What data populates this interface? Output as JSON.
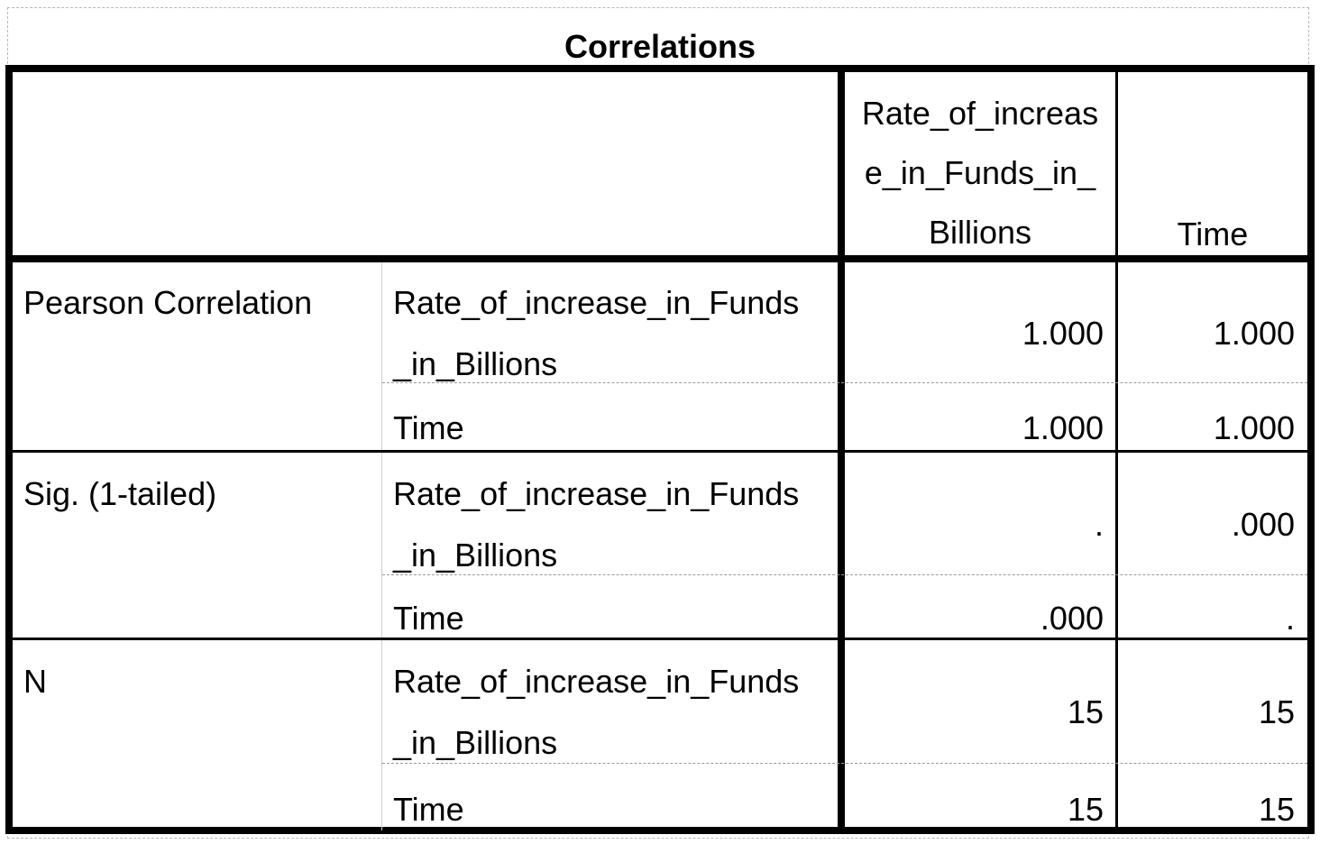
{
  "table": {
    "title": "Correlations",
    "columns": [
      "Rate_of_increase_in_Funds_in_Billions",
      "Time"
    ],
    "col1_header_lines": [
      "Rate_of_increas",
      "e_in_Funds_in_",
      "Billions"
    ],
    "col2_header": "Time",
    "groups": [
      {
        "label": "Pearson Correlation",
        "rows": [
          {
            "var_lines": [
              "Rate_of_increase_in_Funds",
              "_in_Billions"
            ],
            "v1": "1.000",
            "v2": "1.000"
          },
          {
            "var_lines": [
              "Time"
            ],
            "v1": "1.000",
            "v2": "1.000"
          }
        ]
      },
      {
        "label": "Sig. (1-tailed)",
        "rows": [
          {
            "var_lines": [
              "Rate_of_increase_in_Funds",
              "_in_Billions"
            ],
            "v1": ".",
            "v2": ".000"
          },
          {
            "var_lines": [
              "Time"
            ],
            "v1": ".000",
            "v2": "."
          }
        ]
      },
      {
        "label": "N",
        "rows": [
          {
            "var_lines": [
              "Rate_of_increase_in_Funds",
              "_in_Billions"
            ],
            "v1": "15",
            "v2": "15"
          },
          {
            "var_lines": [
              "Time"
            ],
            "v1": "15",
            "v2": "15"
          }
        ]
      }
    ]
  }
}
